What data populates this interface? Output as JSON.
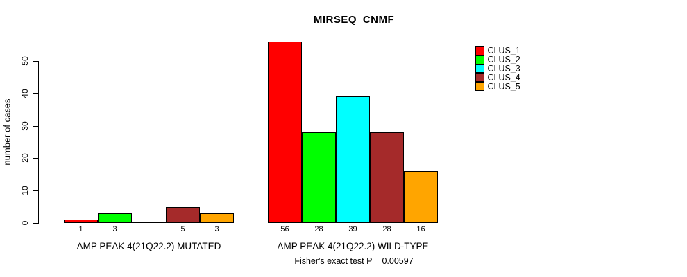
{
  "chart_data": {
    "type": "bar",
    "title": "MIRSEQ_CNMF",
    "ylabel": "number of cases",
    "xlabel": "",
    "ylim": [
      0,
      50
    ],
    "yticks": [
      0,
      10,
      20,
      30,
      40,
      50
    ],
    "grid": false,
    "legend_position": "right",
    "series_names": [
      "CLUS_1",
      "CLUS_2",
      "CLUS_3",
      "CLUS_4",
      "CLUS_5"
    ],
    "series_colors": [
      "#FF0000",
      "#00FF00",
      "#00FFFF",
      "#A52A2A",
      "#FFA500"
    ],
    "groups": [
      {
        "label": "AMP PEAK 4(21Q22.2) MUTATED",
        "values": [
          1,
          3,
          0,
          5,
          3
        ],
        "bar_labels": [
          "1",
          "3",
          "",
          "5",
          "3"
        ]
      },
      {
        "label": "AMP PEAK 4(21Q22.2) WILD-TYPE",
        "values": [
          56,
          28,
          39,
          28,
          16
        ],
        "bar_labels": [
          "56",
          "28",
          "39",
          "28",
          "16"
        ]
      }
    ],
    "legend": [
      {
        "label": "CLUS_1",
        "color": "#FF0000"
      },
      {
        "label": "CLUS_2",
        "color": "#00FF00"
      },
      {
        "label": "CLUS_3",
        "color": "#00FFFF"
      },
      {
        "label": "CLUS_4",
        "color": "#A52A2A"
      },
      {
        "label": "CLUS_5",
        "color": "#FFA500"
      }
    ],
    "caption": "Fisher's exact test P = 0.00597"
  },
  "colors": {
    "background": "#FFFFFF",
    "axis": "#000000",
    "text": "#000000"
  }
}
